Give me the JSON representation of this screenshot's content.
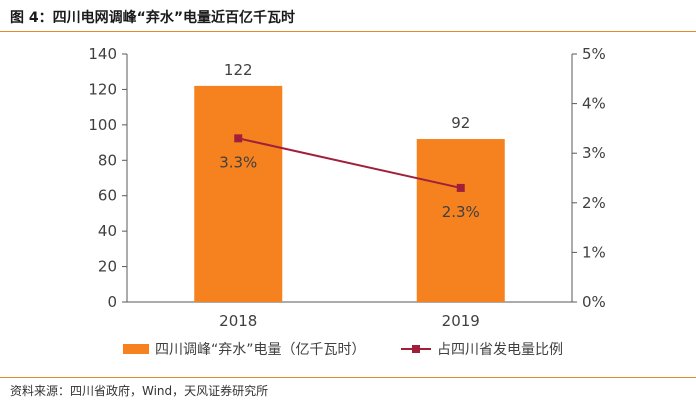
{
  "figure": {
    "title": "图 4：四川电网调峰“弃水”电量近百亿千瓦时",
    "source": "资料来源：四川省政府，Wind，天风证券研究所"
  },
  "colors": {
    "bar": "#F5821F",
    "line": "#A0203C",
    "axis": "#595959",
    "rule": "#E08A2A",
    "text": "#404040"
  },
  "chart_data": {
    "type": "bar",
    "categories": [
      "2018",
      "2019"
    ],
    "series": [
      {
        "name": "四川调峰“弃水”电量（亿千瓦时）",
        "type": "bar",
        "axis": "left",
        "values": [
          122,
          92
        ],
        "labels": [
          "122",
          "92"
        ]
      },
      {
        "name": "占四川省发电量比例",
        "type": "line",
        "axis": "right",
        "values": [
          3.3,
          2.3
        ],
        "labels": [
          "3.3%",
          "2.3%"
        ]
      }
    ],
    "y_left": {
      "lim": [
        0,
        140
      ],
      "ticks": [
        "0",
        "20",
        "40",
        "60",
        "80",
        "100",
        "120",
        "140"
      ]
    },
    "y_right": {
      "lim": [
        0,
        5
      ],
      "ticks": [
        "0%",
        "1%",
        "2%",
        "3%",
        "4%",
        "5%"
      ]
    },
    "grid": false,
    "legend_position": "bottom"
  }
}
